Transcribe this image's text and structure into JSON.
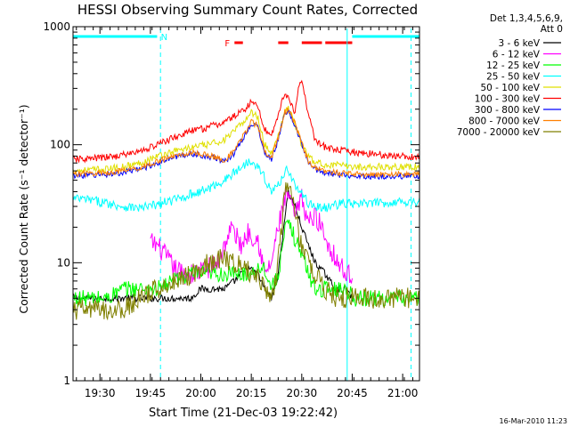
{
  "chart_data": {
    "type": "line",
    "title": "HESSI Observing Summary Count Rates, Corrected",
    "xlabel": "Start Time (21-Dec-03 19:22:42)",
    "ylabel": "Corrected Count Rate (s⁻¹ detector⁻¹)",
    "yscale": "log",
    "ylim": [
      1,
      1000
    ],
    "xlim_minutes_after_1922": [
      0,
      103
    ],
    "xticks": [
      {
        "t": 8,
        "label": "19:30"
      },
      {
        "t": 23,
        "label": "19:45"
      },
      {
        "t": 38,
        "label": "20:00"
      },
      {
        "t": 53,
        "label": "20:15"
      },
      {
        "t": 68,
        "label": "20:30"
      },
      {
        "t": 83,
        "label": "20:45"
      },
      {
        "t": 98,
        "label": "21:00"
      }
    ],
    "yticks": [
      {
        "v": 1,
        "label": "1"
      },
      {
        "v": 10,
        "label": "10"
      },
      {
        "v": 100,
        "label": "100"
      },
      {
        "v": 1000,
        "label": "1000"
      }
    ],
    "legend_header": [
      "Det 1,3,4,5,6,9,",
      "Att 0"
    ],
    "legend_position": "right",
    "series": [
      {
        "name": "3 - 6 keV",
        "color": "#000000",
        "t": [
          0,
          10,
          15,
          20,
          25,
          30,
          35,
          38,
          42,
          45,
          48,
          50,
          52,
          55,
          57,
          59,
          61,
          63,
          64,
          66,
          68,
          70,
          72,
          75,
          78,
          81,
          83
        ],
        "values": [
          5,
          5,
          5,
          5,
          5,
          5,
          5,
          6,
          6,
          6,
          7,
          8,
          9,
          8,
          6,
          5,
          8,
          25,
          40,
          30,
          20,
          14,
          10,
          8,
          6,
          6,
          5
        ]
      },
      {
        "name": "6 - 12 keV",
        "color": "#ff00ff",
        "t": [
          23,
          25,
          27,
          30,
          33,
          36,
          40,
          43,
          45,
          47,
          50,
          52,
          55,
          57,
          59,
          61,
          63,
          64,
          66,
          67,
          68,
          70,
          72,
          74,
          76,
          79,
          81,
          83
        ],
        "values": [
          15,
          14,
          12,
          9,
          8,
          8,
          9,
          10,
          14,
          20,
          14,
          18,
          16,
          8,
          10,
          20,
          34,
          38,
          24,
          30,
          35,
          22,
          25,
          20,
          14,
          10,
          8,
          8
        ]
      },
      {
        "name": "12 - 25 keV",
        "color": "#00ff00",
        "t": [
          0,
          5,
          10,
          15,
          20,
          25,
          30,
          35,
          40,
          45,
          48,
          52,
          55,
          57,
          59,
          61,
          63,
          64,
          66,
          68,
          70,
          72,
          75,
          78,
          81,
          84,
          88,
          92,
          97,
          103
        ],
        "values": [
          5,
          5,
          5,
          6,
          6,
          6,
          7,
          8,
          8,
          8,
          8,
          8,
          9,
          9,
          6,
          8,
          18,
          22,
          16,
          12,
          8,
          6,
          6,
          6,
          6,
          5,
          5,
          5,
          5,
          5
        ]
      },
      {
        "name": "25 - 50 keV",
        "color": "#00ffff",
        "t": [
          0,
          5,
          10,
          15,
          20,
          25,
          30,
          35,
          40,
          45,
          48,
          51,
          53,
          55,
          57,
          59,
          61,
          63,
          64,
          66,
          68,
          70,
          72,
          75,
          78,
          81,
          84,
          88,
          92,
          97,
          103
        ],
        "values": [
          35,
          34,
          32,
          30,
          29,
          31,
          34,
          38,
          42,
          50,
          58,
          68,
          75,
          65,
          52,
          40,
          45,
          60,
          62,
          45,
          38,
          32,
          30,
          29,
          31,
          32,
          31,
          32,
          32,
          33,
          33
        ]
      },
      {
        "name": "50 - 100 keV",
        "color": "#e0e000",
        "t": [
          0,
          5,
          10,
          15,
          20,
          25,
          30,
          35,
          40,
          45,
          48,
          51,
          53,
          55,
          57,
          59,
          61,
          63,
          64,
          66,
          68,
          70,
          72,
          75,
          78,
          81,
          84,
          88,
          92,
          97,
          103
        ],
        "values": [
          60,
          61,
          62,
          65,
          70,
          80,
          88,
          95,
          100,
          110,
          130,
          160,
          190,
          170,
          100,
          85,
          120,
          190,
          200,
          150,
          100,
          80,
          70,
          68,
          67,
          66,
          65,
          65,
          65,
          65,
          65
        ]
      },
      {
        "name": "100 - 300 keV",
        "color": "#ff0000",
        "t": [
          0,
          5,
          10,
          15,
          20,
          25,
          30,
          35,
          40,
          45,
          48,
          51,
          53,
          55,
          57,
          59,
          61,
          63,
          64,
          66,
          67,
          68,
          70,
          72,
          75,
          78,
          81,
          84,
          88,
          92,
          97,
          103
        ],
        "values": [
          75,
          76,
          78,
          82,
          88,
          100,
          115,
          130,
          140,
          155,
          175,
          200,
          230,
          210,
          135,
          120,
          180,
          280,
          250,
          180,
          300,
          350,
          180,
          110,
          95,
          90,
          88,
          86,
          84,
          82,
          80,
          78
        ]
      },
      {
        "name": "300 - 800 keV",
        "color": "#0000ff",
        "t": [
          0,
          5,
          10,
          15,
          20,
          25,
          30,
          35,
          40,
          45,
          48,
          51,
          53,
          55,
          57,
          59,
          61,
          63,
          64,
          66,
          68,
          70,
          72,
          75,
          78,
          81,
          84,
          88,
          92,
          97,
          103
        ],
        "values": [
          55,
          55,
          56,
          58,
          62,
          70,
          78,
          84,
          80,
          72,
          85,
          120,
          150,
          140,
          85,
          75,
          110,
          185,
          195,
          145,
          100,
          70,
          62,
          58,
          56,
          55,
          55,
          54,
          54,
          54,
          54
        ]
      },
      {
        "name": "800 - 7000 keV",
        "color": "#ff8000",
        "t": [
          0,
          5,
          10,
          15,
          20,
          25,
          30,
          35,
          40,
          45,
          48,
          51,
          53,
          55,
          57,
          59,
          61,
          63,
          64,
          66,
          68,
          70,
          72,
          75,
          78,
          81,
          84,
          88,
          92,
          97,
          103
        ],
        "values": [
          57,
          57,
          58,
          60,
          64,
          72,
          80,
          86,
          82,
          74,
          88,
          125,
          155,
          145,
          88,
          78,
          115,
          190,
          200,
          150,
          102,
          72,
          64,
          60,
          58,
          57,
          57,
          56,
          56,
          56,
          56
        ]
      },
      {
        "name": "7000 - 20000 keV",
        "color": "#808000",
        "t": [
          0,
          5,
          10,
          15,
          20,
          25,
          30,
          35,
          40,
          45,
          48,
          51,
          53,
          55,
          57,
          59,
          61,
          63,
          64,
          66,
          68,
          70,
          72,
          75,
          78,
          81,
          84,
          88,
          92,
          97,
          103
        ],
        "values": [
          4,
          4,
          4,
          4,
          5,
          6,
          7,
          8,
          10,
          11,
          10,
          9,
          8,
          8,
          6,
          5,
          10,
          40,
          50,
          25,
          14,
          10,
          8,
          6,
          5,
          5,
          5,
          5,
          5,
          5,
          5
        ]
      }
    ],
    "observing_flags": [
      {
        "label": "N",
        "color": "#00ffff",
        "segments": [
          [
            0,
            25
          ],
          [
            83,
            103
          ]
        ]
      },
      {
        "label": "F",
        "color": "#ff0000",
        "segments": [
          [
            48,
            50.5
          ],
          [
            61,
            64
          ],
          [
            68,
            74
          ],
          [
            75,
            83
          ]
        ]
      }
    ],
    "vlines": [
      {
        "t": 26,
        "style": "dashed",
        "color": "#00ffff"
      },
      {
        "t": 81.5,
        "style": "solid",
        "color": "#00ffff"
      },
      {
        "t": 100.5,
        "style": "dashed",
        "color": "#00ffff"
      }
    ],
    "grid": false
  },
  "footer_timestamp": "16-Mar-2010 11:23"
}
